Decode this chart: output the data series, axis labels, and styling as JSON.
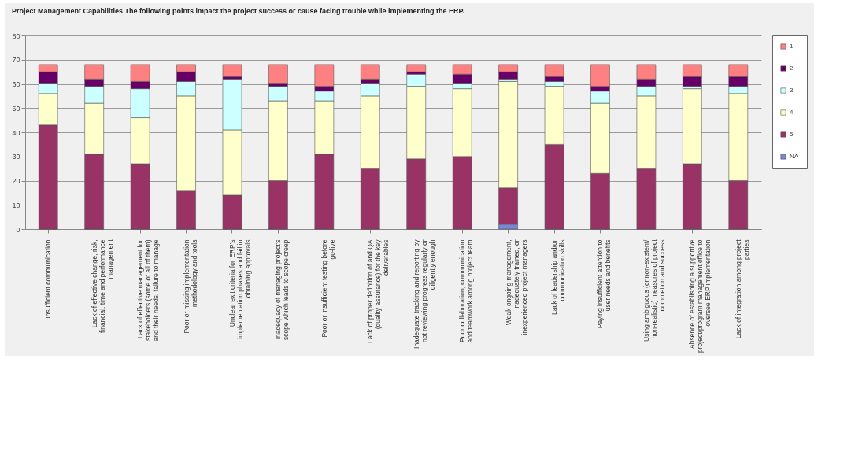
{
  "chart_data": {
    "type": "bar",
    "stacked": true,
    "title": "Project Management Capabilities  The following points impact the project success or cause facing trouble while implementing the ERP.",
    "categories": [
      "Insufficient communication",
      "Lack of effective change, risk, financial, time and performance management",
      "Lack of effective management for stakeholders (some or all of them) and their needs, failure to manage",
      "Poor or missing implementation methodology and tools",
      "Unclear exit criteria for ERP's implementation phases and fail in obtaining approvals",
      "Inadequacy of managing project's scope which leads to scope creep",
      "Poor or insufficient testing before go-live",
      "Lack of proper definition of and QA (quality assurance) for the key deliverables",
      "Inadequate tracking and reporting by not reviewing progress regularly or diligently enough",
      "Poor collaboration, communication and teamwork among project team",
      "Weak ongoing management, inadequately trained, or inexperienced project managers",
      "Lack of leadership and/or communication skills",
      "Paying insufficient attention to user needs and benefits",
      "Using ambiguous (or non-existent/ non-realistic) measures of project completion and success",
      "Absence of establishing a supportive project/program management office to oversee ERP implementation",
      "Lack of integration among project parties"
    ],
    "series": [
      {
        "name": "NA",
        "color": "#7a86d6",
        "values": [
          0,
          0,
          0,
          0,
          0,
          0,
          0,
          0,
          0,
          0,
          2,
          0,
          0,
          0,
          0,
          0
        ]
      },
      {
        "name": "5",
        "color": "#993366",
        "values": [
          43,
          31,
          27,
          16,
          14,
          20,
          31,
          25,
          29,
          30,
          15,
          35,
          23,
          25,
          27,
          20
        ]
      },
      {
        "name": "4",
        "color": "#ffffcc",
        "values": [
          13,
          21,
          19,
          39,
          27,
          33,
          22,
          30,
          30,
          28,
          44,
          24,
          29,
          30,
          31,
          36
        ]
      },
      {
        "name": "3",
        "color": "#ccffff",
        "values": [
          4,
          7,
          12,
          6,
          21,
          6,
          4,
          5,
          5,
          2,
          1,
          2,
          5,
          4,
          1,
          3
        ]
      },
      {
        "name": "2",
        "color": "#660066",
        "values": [
          5,
          3,
          3,
          4,
          1,
          1,
          2,
          2,
          1,
          4,
          3,
          2,
          2,
          3,
          4,
          4
        ]
      },
      {
        "name": "1",
        "color": "#ff8080",
        "values": [
          3,
          6,
          7,
          3,
          5,
          8,
          9,
          6,
          3,
          4,
          3,
          5,
          9,
          6,
          5,
          5
        ]
      }
    ],
    "ylim": [
      0,
      80
    ],
    "yticks": [
      0,
      10,
      20,
      30,
      40,
      50,
      60,
      70,
      80
    ],
    "grid": "y",
    "legend": "right"
  }
}
